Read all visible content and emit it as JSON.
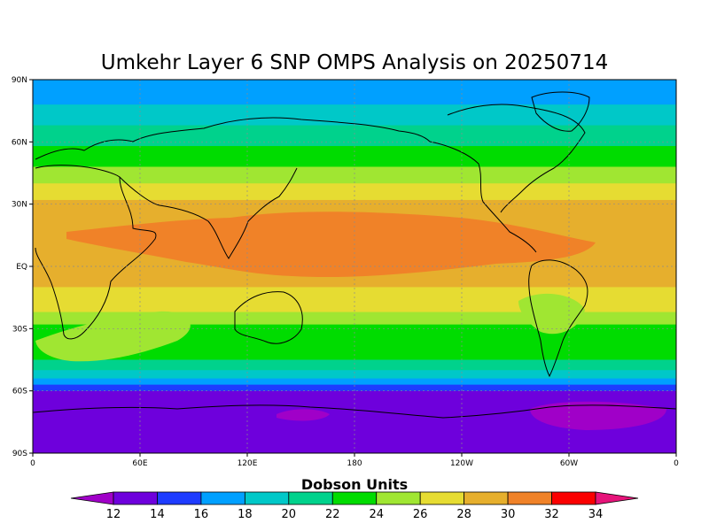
{
  "title": "Umkehr Layer 6 SNP OMPS Analysis on 20250714",
  "colorbar_label": "Dobson Units",
  "lat_ticks": [
    "90N",
    "60N",
    "30N",
    "EQ",
    "30S",
    "60S",
    "90S"
  ],
  "lon_ticks": [
    "0",
    "60E",
    "120E",
    "180",
    "120W",
    "60W",
    "0"
  ],
  "colorbar": {
    "levels": [
      "12",
      "14",
      "16",
      "18",
      "20",
      "22",
      "24",
      "26",
      "28",
      "30",
      "32",
      "34"
    ],
    "colors": [
      "#a000c8",
      "#6e00dc",
      "#1e3cff",
      "#00a0ff",
      "#00c8c8",
      "#00d28c",
      "#00dc00",
      "#a0e632",
      "#e6dc32",
      "#e6af2d",
      "#f08228",
      "#fa0000",
      "#e6147a"
    ]
  },
  "map_bands": [
    {
      "lat_top": 90,
      "lat_bottom": 78,
      "color": "#00a0ff"
    },
    {
      "lat_top": 78,
      "lat_bottom": 68,
      "color": "#00c8c8"
    },
    {
      "lat_top": 68,
      "lat_bottom": 58,
      "color": "#00d28c"
    },
    {
      "lat_top": 58,
      "lat_bottom": 48,
      "color": "#00dc00"
    },
    {
      "lat_top": 48,
      "lat_bottom": 40,
      "color": "#a0e632"
    },
    {
      "lat_top": 40,
      "lat_bottom": 32,
      "color": "#e6dc32"
    },
    {
      "lat_top": 32,
      "lat_bottom": -10,
      "color": "#e6af2d"
    },
    {
      "lat_top": -10,
      "lat_bottom": -22,
      "color": "#e6dc32"
    },
    {
      "lat_top": -22,
      "lat_bottom": -28,
      "color": "#a0e632"
    },
    {
      "lat_top": -28,
      "lat_bottom": -45,
      "color": "#00dc00"
    },
    {
      "lat_top": -45,
      "lat_bottom": -50,
      "color": "#00d28c"
    },
    {
      "lat_top": -50,
      "lat_bottom": -54,
      "color": "#00c8c8"
    },
    {
      "lat_top": -54,
      "lat_bottom": -57,
      "color": "#00a0ff"
    },
    {
      "lat_top": -57,
      "lat_bottom": -60,
      "color": "#1e3cff"
    },
    {
      "lat_top": -60,
      "lat_bottom": -90,
      "color": "#6e00dc"
    }
  ],
  "map_features": {
    "high_band_color": "#f08228",
    "low_patch_color": "#a000c8",
    "lightgreen_patch_color": "#a0e632",
    "coastline_color": "#000000",
    "grid_color": "#8c8c8c"
  }
}
